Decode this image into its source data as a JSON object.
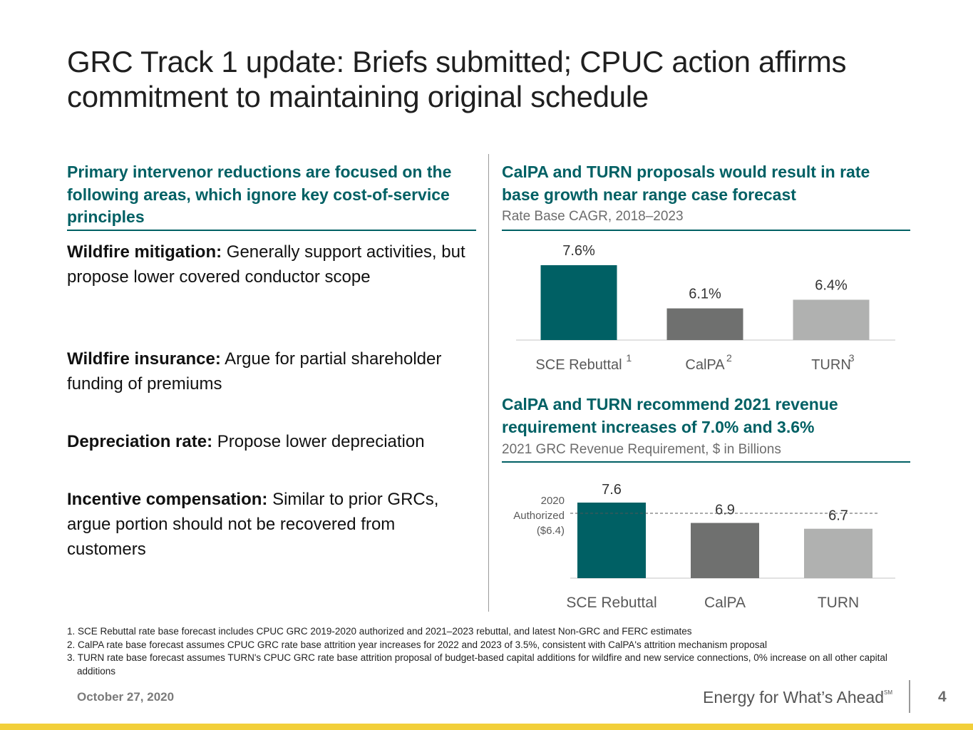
{
  "title": {
    "line1": "GRC Track 1 update: Briefs submitted; CPUC action affirms",
    "line2": "commitment to maintaining original schedule"
  },
  "left": {
    "heading": "Primary intervenor reductions are focused on the following areas, which ignore key cost-of-service principles",
    "items": [
      {
        "label": "Wildfire mitigation:",
        "text": "Generally support activities, but propose lower covered conductor scope"
      },
      {
        "label": "Wildfire insurance:",
        "text": "Argue for partial shareholder funding of premiums"
      },
      {
        "label": "Depreciation rate:",
        "text": "Propose lower depreciation"
      },
      {
        "label": "Incentive compensation:",
        "text": "Similar to prior GRCs, argue portion should not be recovered from customers"
      }
    ]
  },
  "chart1": {
    "heading": "CalPA and TURN proposals would result in rate base growth near range case forecast",
    "subtitle": "Rate Base CAGR, 2018–2023"
  },
  "chart2": {
    "heading": "CalPA and TURN recommend 2021 revenue requirement increases of 7.0% and 3.6%",
    "subtitle": "2021 GRC Revenue Requirement, $ in Billions",
    "reference": {
      "line1": "2020",
      "line2": "Authorized",
      "line3": "($6.4)"
    }
  },
  "chart_data": [
    {
      "type": "bar",
      "title": "Rate Base CAGR, 2018–2023",
      "categories": [
        "SCE Rebuttal",
        "CalPA",
        "TURN"
      ],
      "footnote_marks": [
        "1",
        "2",
        "3"
      ],
      "values": [
        7.6,
        6.1,
        6.4
      ],
      "value_labels": [
        "7.6%",
        "6.1%",
        "6.4%"
      ],
      "unit": "%",
      "colors": [
        "#006064",
        "#6f706f",
        "#b0b1b0"
      ],
      "ylim": [
        0,
        7.6
      ],
      "grid": false,
      "legend": "none"
    },
    {
      "type": "bar",
      "title": "2021 GRC Revenue Requirement, $ in Billions",
      "categories": [
        "SCE Rebuttal",
        "CalPA",
        "TURN"
      ],
      "values": [
        7.6,
        6.9,
        6.7
      ],
      "value_labels": [
        "7.6",
        "6.9",
        "6.7"
      ],
      "reference_line": 6.4,
      "colors": [
        "#006064",
        "#6f706f",
        "#b0b1b0"
      ],
      "ylim": [
        0,
        7.6
      ],
      "grid": false,
      "legend": "none"
    }
  ],
  "footnotes": [
    "1. SCE Rebuttal rate base forecast includes CPUC GRC 2019-2020 authorized and 2021–2023 rebuttal, and latest Non-GRC and FERC estimates",
    "2. CalPA rate base forecast assumes CPUC GRC rate base attrition year increases for 2022 and 2023 of 3.5%, consistent with CalPA's attrition mechanism proposal",
    "3. TURN rate base forecast assumes TURN's CPUC GRC rate base attrition proposal of budget-based capital additions for wildfire and new service connections, 0% increase on all other capital additions"
  ],
  "footer": {
    "date": "October 27, 2020",
    "tagline": "Energy for What’s Ahead",
    "tagline_mark": "SM",
    "page": "4"
  },
  "colors": {
    "teal": "#006064",
    "dark_gray": "#6f706f",
    "light_gray": "#b0b1b0",
    "accent_yellow": "#f2cf3a"
  }
}
